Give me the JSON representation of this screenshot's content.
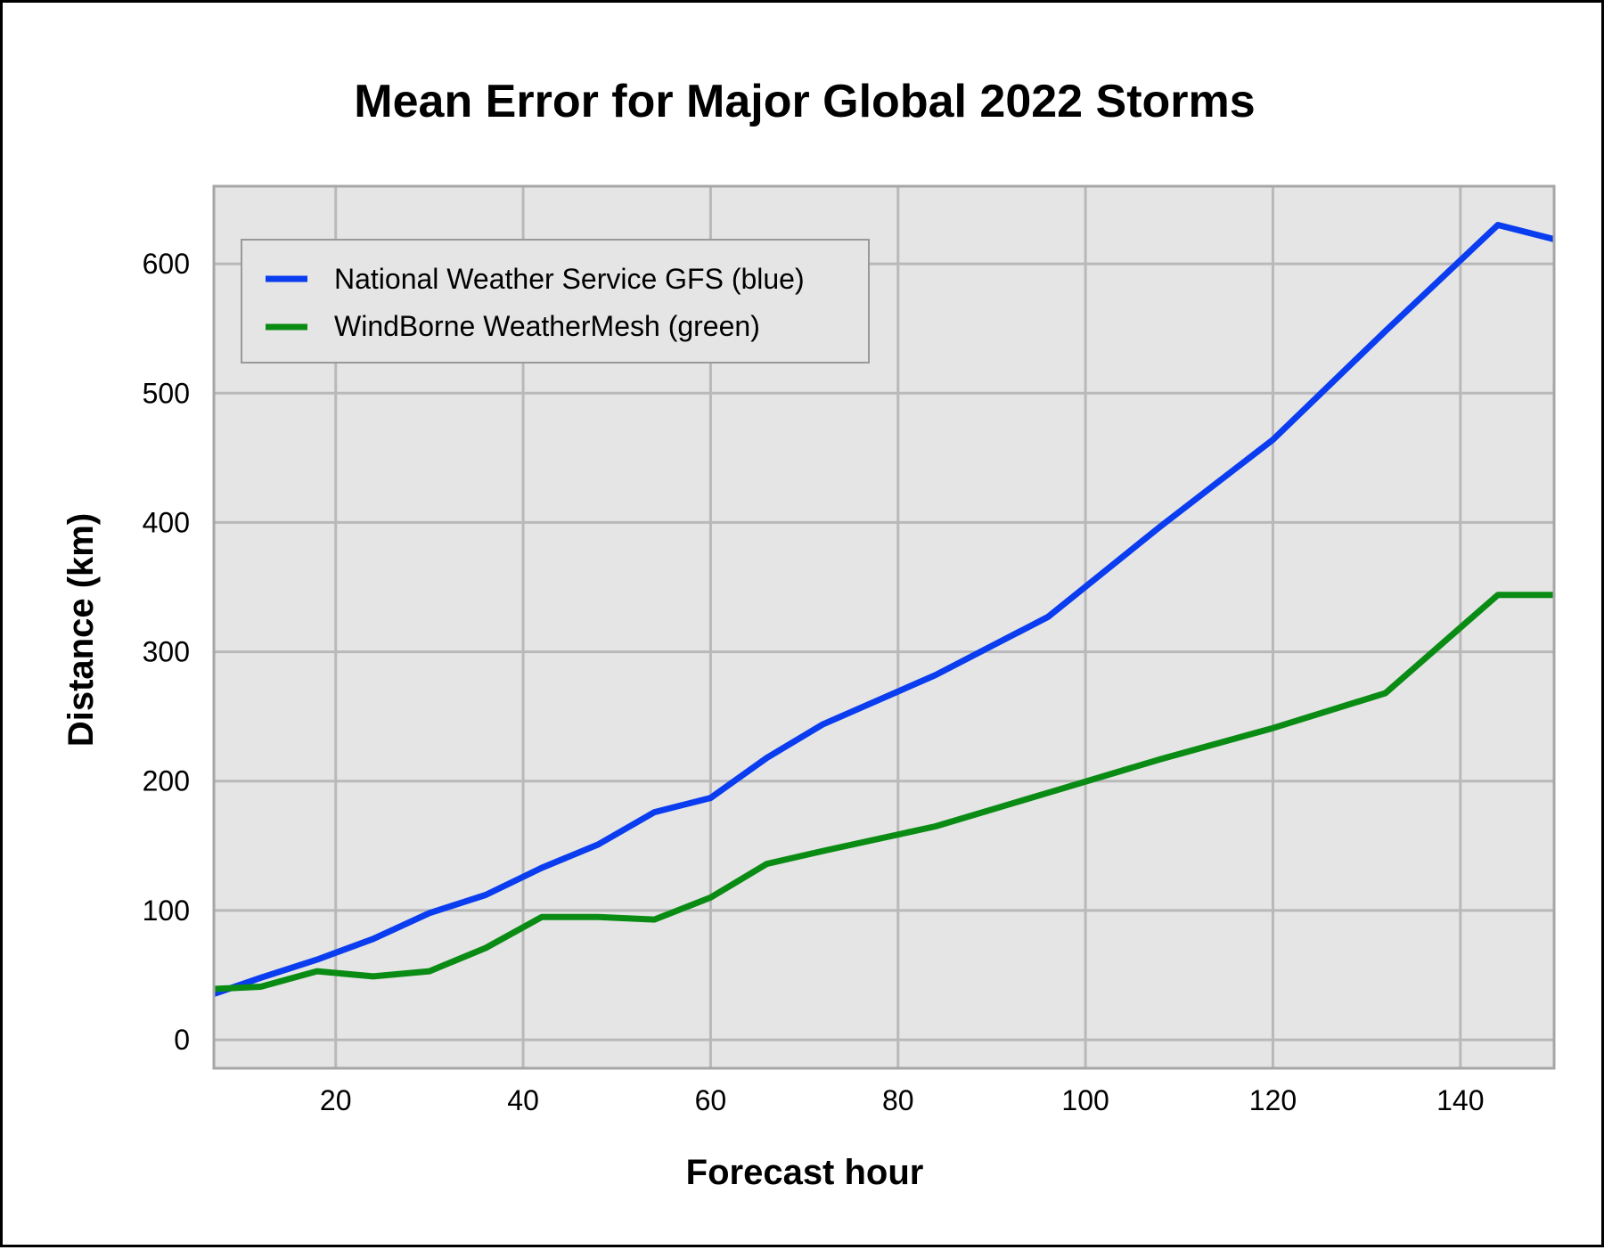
{
  "chart_data": {
    "type": "line",
    "title": "Mean Error for Major Global 2022 Storms",
    "xlabel": "Forecast hour",
    "ylabel": "Distance (km)",
    "xlim": [
      7,
      150
    ],
    "ylim": [
      -22,
      660
    ],
    "xticks": [
      20,
      40,
      60,
      80,
      100,
      120,
      140
    ],
    "yticks": [
      0,
      100,
      200,
      300,
      400,
      500,
      600
    ],
    "grid": true,
    "legend_position": "top-left",
    "background_color": "#e5e5e5",
    "grid_color": "#b9b9b9",
    "series": [
      {
        "name": "National Weather Service GFS (blue)",
        "color": "#0a3cf0",
        "x": [
          6,
          12,
          18,
          24,
          30,
          36,
          42,
          48,
          54,
          60,
          66,
          72,
          84,
          96,
          108,
          120,
          132,
          144,
          150
        ],
        "y": [
          33,
          48,
          62,
          78,
          98,
          112,
          133,
          151,
          176,
          187,
          218,
          244,
          282,
          327,
          397,
          464,
          548,
          630,
          619
        ]
      },
      {
        "name": "WindBorne WeatherMesh (green)",
        "color": "#0a8c14",
        "x": [
          6,
          12,
          18,
          24,
          30,
          36,
          42,
          48,
          54,
          60,
          66,
          72,
          84,
          96,
          108,
          120,
          132,
          144,
          150
        ],
        "y": [
          39,
          41,
          53,
          49,
          53,
          71,
          95,
          95,
          93,
          110,
          136,
          146,
          165,
          191,
          217,
          241,
          268,
          344,
          344
        ]
      }
    ]
  }
}
